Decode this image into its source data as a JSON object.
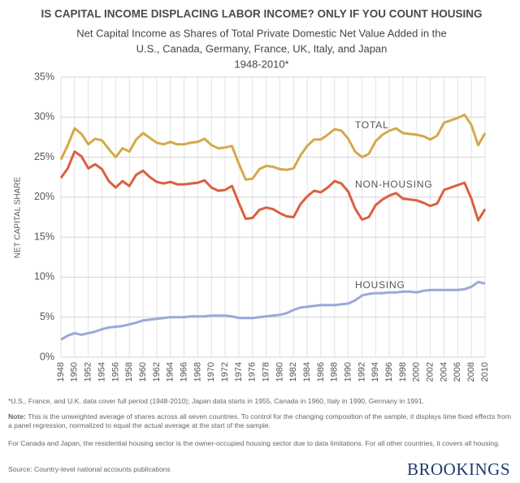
{
  "chart_data": {
    "type": "line",
    "title": "IS CAPITAL INCOME DISPLACING LABOR INCOME? ONLY IF YOU COUNT HOUSING",
    "subtitle": [
      "Net Capital Income as Shares of Total Private Domestic Net Value Added in the",
      "U.S., Canada, Germany, France, UK, Italy, and Japan",
      "1948-2010*"
    ],
    "y_label": "NET CAPITAL SHARE",
    "x": [
      1948,
      1949,
      1950,
      1951,
      1952,
      1953,
      1954,
      1955,
      1956,
      1957,
      1958,
      1959,
      1960,
      1961,
      1962,
      1963,
      1964,
      1965,
      1966,
      1967,
      1968,
      1969,
      1970,
      1971,
      1972,
      1973,
      1974,
      1975,
      1976,
      1977,
      1978,
      1979,
      1980,
      1981,
      1982,
      1983,
      1984,
      1985,
      1986,
      1987,
      1988,
      1989,
      1990,
      1991,
      1992,
      1993,
      1994,
      1995,
      1996,
      1997,
      1998,
      1999,
      2000,
      2001,
      2002,
      2003,
      2004,
      2005,
      2006,
      2007,
      2008,
      2009,
      2010
    ],
    "series": [
      {
        "name": "TOTAL",
        "color": "#d4a94c",
        "values": [
          24.7,
          26.5,
          28.6,
          27.9,
          26.6,
          27.3,
          27.1,
          26.0,
          25.0,
          26.1,
          25.7,
          27.2,
          28.0,
          27.4,
          26.8,
          26.6,
          26.9,
          26.6,
          26.6,
          26.8,
          26.9,
          27.3,
          26.5,
          26.1,
          26.2,
          26.4,
          24.2,
          22.2,
          22.3,
          23.5,
          23.9,
          23.8,
          23.5,
          23.4,
          23.6,
          25.2,
          26.4,
          27.2,
          27.2,
          27.8,
          28.5,
          28.3,
          27.3,
          25.7,
          25.0,
          25.4,
          27.0,
          27.8,
          28.3,
          28.6,
          28.0,
          27.9,
          27.8,
          27.6,
          27.2,
          27.7,
          29.3,
          29.6,
          29.9,
          30.3,
          29.0,
          26.5,
          28.0
        ]
      },
      {
        "name": "NON-HOUSING",
        "color": "#dc5f3f",
        "values": [
          22.4,
          23.6,
          25.7,
          25.1,
          23.6,
          24.1,
          23.5,
          22.0,
          21.2,
          22.0,
          21.4,
          22.8,
          23.3,
          22.5,
          21.9,
          21.7,
          21.9,
          21.6,
          21.6,
          21.7,
          21.8,
          22.1,
          21.2,
          20.8,
          20.9,
          21.4,
          19.3,
          17.3,
          17.4,
          18.4,
          18.7,
          18.5,
          18.0,
          17.6,
          17.5,
          19.1,
          20.1,
          20.8,
          20.6,
          21.2,
          22.0,
          21.7,
          20.7,
          18.6,
          17.2,
          17.5,
          19.0,
          19.7,
          20.2,
          20.5,
          19.8,
          19.7,
          19.6,
          19.3,
          18.9,
          19.2,
          20.9,
          21.2,
          21.5,
          21.8,
          19.8,
          17.1,
          18.5
        ]
      },
      {
        "name": "HOUSING",
        "color": "#9aa9d9",
        "values": [
          2.2,
          2.7,
          3.0,
          2.8,
          3.0,
          3.2,
          3.5,
          3.7,
          3.8,
          3.9,
          4.1,
          4.3,
          4.6,
          4.7,
          4.8,
          4.9,
          5.0,
          5.0,
          5.0,
          5.1,
          5.1,
          5.1,
          5.2,
          5.2,
          5.2,
          5.1,
          4.9,
          4.9,
          4.9,
          5.0,
          5.1,
          5.2,
          5.3,
          5.5,
          5.9,
          6.2,
          6.3,
          6.4,
          6.5,
          6.5,
          6.5,
          6.6,
          6.7,
          7.1,
          7.7,
          7.9,
          8.0,
          8.0,
          8.1,
          8.1,
          8.2,
          8.2,
          8.1,
          8.3,
          8.4,
          8.4,
          8.4,
          8.4,
          8.4,
          8.5,
          8.8,
          9.4,
          9.2
        ]
      }
    ],
    "xlim": [
      1948,
      2010
    ],
    "xticks": [
      1948,
      1950,
      1952,
      1954,
      1956,
      1958,
      1960,
      1962,
      1964,
      1966,
      1968,
      1970,
      1972,
      1974,
      1976,
      1978,
      1980,
      1982,
      1984,
      1986,
      1988,
      1990,
      1992,
      1994,
      1996,
      1998,
      2000,
      2002,
      2004,
      2006,
      2008,
      2010
    ],
    "ylim": [
      0,
      35
    ],
    "yticks": [
      {
        "value": 0,
        "label": "0%"
      },
      {
        "value": 5,
        "label": "5%"
      },
      {
        "value": 10,
        "label": "10%"
      },
      {
        "value": 15,
        "label": "15%"
      },
      {
        "value": 20,
        "label": "20%"
      },
      {
        "value": 25,
        "label": "25%"
      },
      {
        "value": 30,
        "label": "30%"
      },
      {
        "value": 35,
        "label": "35%"
      }
    ],
    "grid": true
  },
  "notes": {
    "footnote": "*U.S., France, and U.K. data cover full period (1948-2010); Japan data starts in 1955, Canada in 1960, Italy in 1990, Germany in 1991.",
    "note_label": "Note:",
    "note": "This is the unweighted average of shares across all seven countries. To control for the changing composition of the sample, it displays time fixed effects from a panel regression, normalized to equal the actual average at the start of the sample.",
    "note2": "For Canada and Japan, the residential housing sector is the owner-occupied housing sector due to data limitations. For all other countries, it covers all housing.",
    "source": "Source: Country-level national accounts publications",
    "brand": "BROOKINGS"
  }
}
